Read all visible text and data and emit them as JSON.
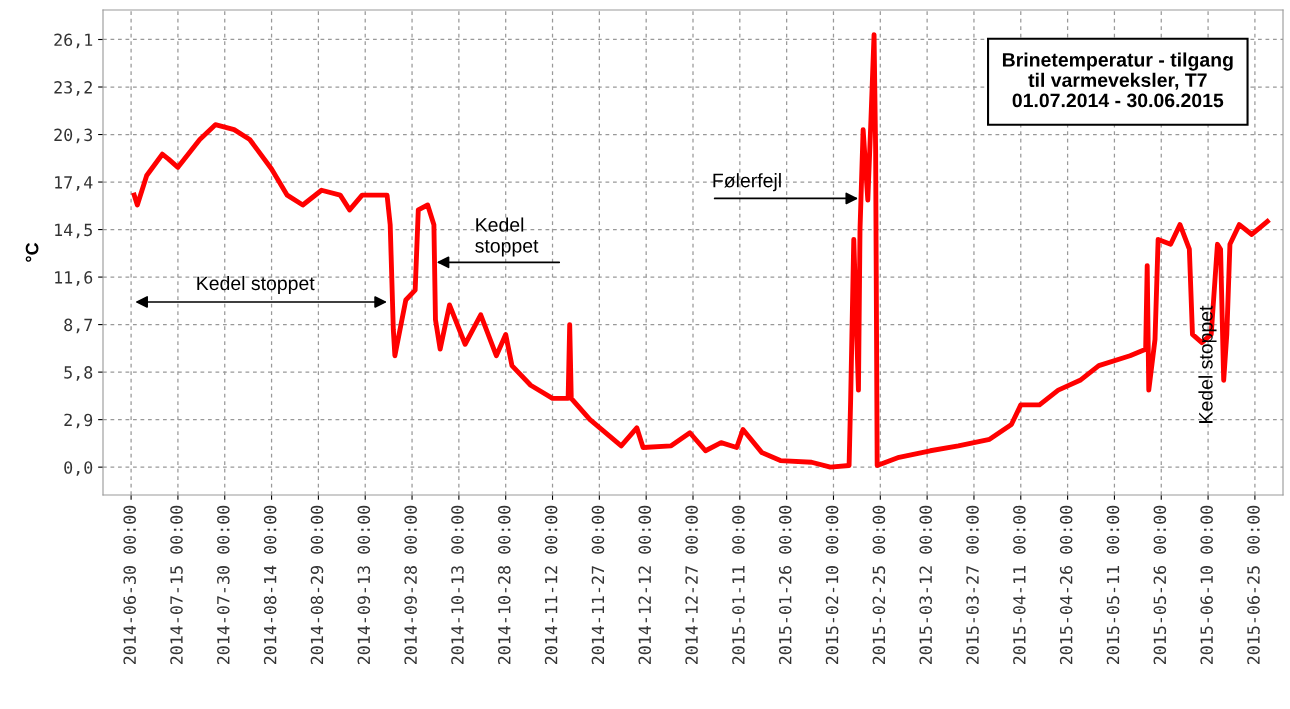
{
  "chart_data": {
    "type": "line",
    "title": "Brinetemperatur - tilgang\ntil varmeveksler, T7",
    "subtitle": "01.07.2014 - 30.06.2015",
    "ylabel": "°C",
    "x": [
      "2014-07-01",
      "2014-07-02",
      "2014-07-05",
      "2014-07-10",
      "2014-07-12",
      "2014-07-15",
      "2014-07-22",
      "2014-07-27",
      "2014-08-02",
      "2014-08-07",
      "2014-08-14",
      "2014-08-19",
      "2014-08-24",
      "2014-08-30",
      "2014-09-05",
      "2014-09-08",
      "2014-09-12",
      "2014-09-20",
      "2014-09-21",
      "2014-09-22",
      "2014-09-22T12:00",
      "2014-09-26",
      "2014-09-29",
      "2014-09-30",
      "2014-10-03",
      "2014-10-05",
      "2014-10-05T12:00",
      "2014-10-07",
      "2014-10-10",
      "2014-10-15",
      "2014-10-20",
      "2014-10-25",
      "2014-10-28",
      "2014-10-30",
      "2014-11-05",
      "2014-11-12",
      "2014-11-17",
      "2014-11-17T12:00",
      "2014-11-18",
      "2014-11-24",
      "2014-12-04",
      "2014-12-09",
      "2014-12-11",
      "2014-12-20",
      "2014-12-26",
      "2014-12-31",
      "2015-01-05",
      "2015-01-10",
      "2015-01-12",
      "2015-01-18",
      "2015-01-24",
      "2015-02-03",
      "2015-02-09",
      "2015-02-15",
      "2015-02-15T12:00",
      "2015-02-16T12:00",
      "2015-02-18",
      "2015-02-18T12:00",
      "2015-02-19T12:00",
      "2015-02-21",
      "2015-02-22",
      "2015-02-23",
      "2015-02-23T12:00",
      "2015-02-24",
      "2015-03-03",
      "2015-03-13",
      "2015-03-22",
      "2015-04-01",
      "2015-04-08",
      "2015-04-11",
      "2015-04-17",
      "2015-04-23",
      "2015-04-30",
      "2015-05-06",
      "2015-05-16",
      "2015-05-21",
      "2015-05-21T12:00",
      "2015-05-22",
      "2015-05-24",
      "2015-05-25",
      "2015-05-29",
      "2015-06-01",
      "2015-06-04",
      "2015-06-05",
      "2015-06-08",
      "2015-06-11",
      "2015-06-13",
      "2015-06-14",
      "2015-06-15",
      "2015-06-16",
      "2015-06-17",
      "2015-06-20",
      "2015-06-24",
      "2015-06-29"
    ],
    "series": [
      {
        "color": "#ff0000",
        "values": [
          16.6,
          16.0,
          17.8,
          19.1,
          18.8,
          18.3,
          20.0,
          20.9,
          20.6,
          20.0,
          18.2,
          16.6,
          16.0,
          16.9,
          16.6,
          15.7,
          16.6,
          16.6,
          14.8,
          8.4,
          6.8,
          10.2,
          10.8,
          15.7,
          16.0,
          14.8,
          9.0,
          7.2,
          9.9,
          7.5,
          9.3,
          6.8,
          8.1,
          6.2,
          5.0,
          4.2,
          4.2,
          8.7,
          4.2,
          2.9,
          1.3,
          2.4,
          1.2,
          1.3,
          2.1,
          1.0,
          1.5,
          1.2,
          2.3,
          0.9,
          0.4,
          0.3,
          0.0,
          0.1,
          4.1,
          13.9,
          4.7,
          14.5,
          20.6,
          16.3,
          21.2,
          26.4,
          19.4,
          0.1,
          0.6,
          1.0,
          1.3,
          1.7,
          2.6,
          3.8,
          3.8,
          4.7,
          5.3,
          6.2,
          6.8,
          7.2,
          12.3,
          4.7,
          7.8,
          13.9,
          13.6,
          14.8,
          13.3,
          8.1,
          7.6,
          8.1,
          13.6,
          13.3,
          5.3,
          8.1,
          13.6,
          14.8,
          14.2,
          15.0
        ]
      }
    ],
    "xlim": [
      "2014-06-21",
      "2015-07-04"
    ],
    "xticks": [
      {
        "value": "2014-06-30",
        "label": "2014-06-30 00:00"
      },
      {
        "value": "2014-07-15",
        "label": "2014-07-15 00:00"
      },
      {
        "value": "2014-07-30",
        "label": "2014-07-30 00:00"
      },
      {
        "value": "2014-08-14",
        "label": "2014-08-14 00:00"
      },
      {
        "value": "2014-08-29",
        "label": "2014-08-29 00:00"
      },
      {
        "value": "2014-09-13",
        "label": "2014-09-13 00:00"
      },
      {
        "value": "2014-09-28",
        "label": "2014-09-28 00:00"
      },
      {
        "value": "2014-10-13",
        "label": "2014-10-13 00:00"
      },
      {
        "value": "2014-10-28",
        "label": "2014-10-28 00:00"
      },
      {
        "value": "2014-11-12",
        "label": "2014-11-12 00:00"
      },
      {
        "value": "2014-11-27",
        "label": "2014-11-27 00:00"
      },
      {
        "value": "2014-12-12",
        "label": "2014-12-12 00:00"
      },
      {
        "value": "2014-12-27",
        "label": "2014-12-27 00:00"
      },
      {
        "value": "2015-01-11",
        "label": "2015-01-11 00:00"
      },
      {
        "value": "2015-01-26",
        "label": "2015-01-26 00:00"
      },
      {
        "value": "2015-02-10",
        "label": "2015-02-10 00:00"
      },
      {
        "value": "2015-02-25",
        "label": "2015-02-25 00:00"
      },
      {
        "value": "2015-03-12",
        "label": "2015-03-12 00:00"
      },
      {
        "value": "2015-03-27",
        "label": "2015-03-27 00:00"
      },
      {
        "value": "2015-04-11",
        "label": "2015-04-11 00:00"
      },
      {
        "value": "2015-04-26",
        "label": "2015-04-26 00:00"
      },
      {
        "value": "2015-05-11",
        "label": "2015-05-11 00:00"
      },
      {
        "value": "2015-05-26",
        "label": "2015-05-26 00:00"
      },
      {
        "value": "2015-06-10",
        "label": "2015-06-10 00:00"
      },
      {
        "value": "2015-06-25",
        "label": "2015-06-25 00:00"
      }
    ],
    "ylim": [
      -1.7,
      27.9
    ],
    "yticks": [
      {
        "value": 0,
        "label": "0,0"
      },
      {
        "value": 2.9,
        "label": "2,9"
      },
      {
        "value": 5.8,
        "label": "5,8"
      },
      {
        "value": 8.7,
        "label": "8,7"
      },
      {
        "value": 11.6,
        "label": "11,6"
      },
      {
        "value": 14.5,
        "label": "14,5"
      },
      {
        "value": 17.4,
        "label": "17,4"
      },
      {
        "value": 20.3,
        "label": "20,3"
      },
      {
        "value": 23.2,
        "label": "23,2"
      },
      {
        "value": 26.1,
        "label": "26,1"
      }
    ],
    "grid": true,
    "marker": "none",
    "line_style": "solid",
    "annotations": [
      "Kedel stoppet",
      {
        "text": "Kedel\nstoppet",
        "x": "2014-10-05",
        "y": 12.5
      },
      {
        "text": "Følerfejl",
        "x": "2015-02-18T19:00",
        "y": 16.4
      },
      "Kedel stoppet"
    ]
  }
}
